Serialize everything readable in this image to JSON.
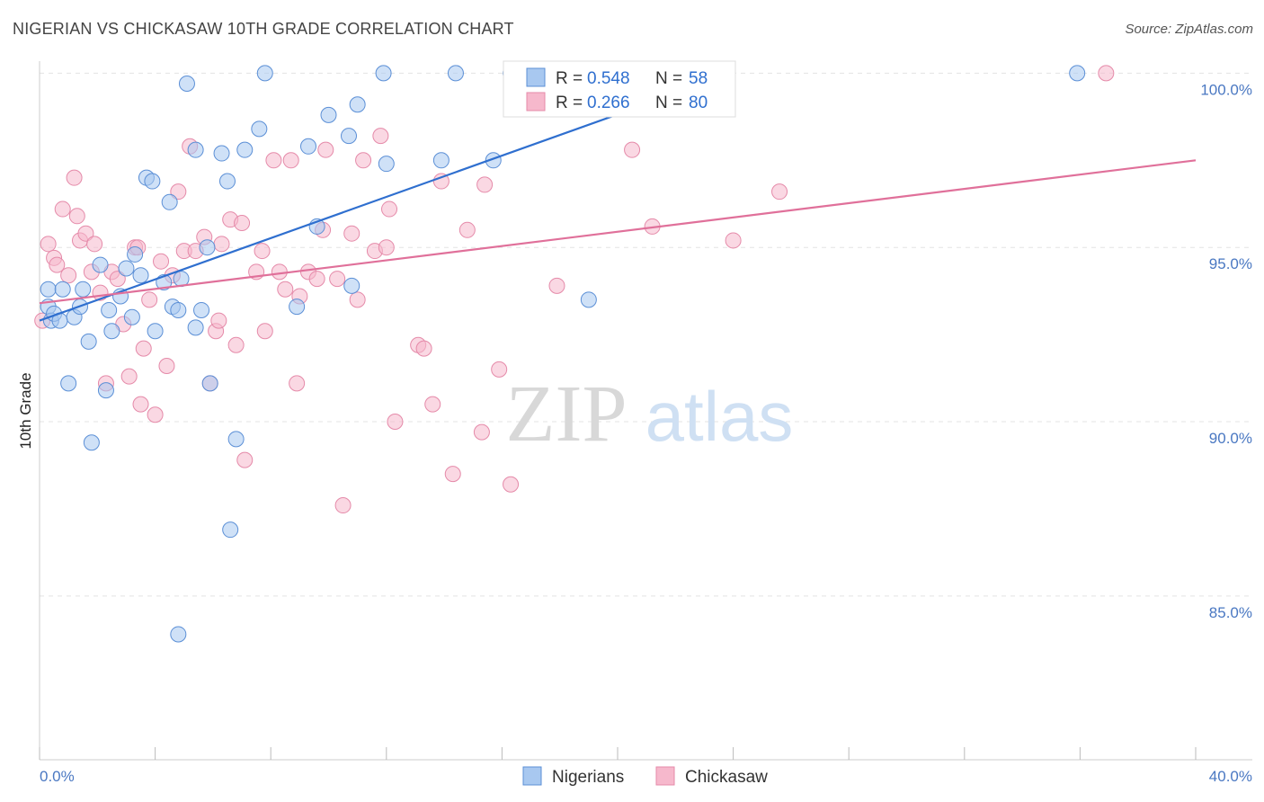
{
  "title": "NIGERIAN VS CHICKASAW 10TH GRADE CORRELATION CHART",
  "source": "Source: ZipAtlas.com",
  "watermark": {
    "zip": "ZIP",
    "atlas": "atlas"
  },
  "legend_top": [
    {
      "r_label": "R =",
      "r_value": "0.548",
      "n_label": "N =",
      "n_value": "58"
    },
    {
      "r_label": "R =",
      "r_value": "0.266",
      "n_label": "N =",
      "n_value": "80"
    }
  ],
  "legend_bottom": [
    "Nigerians",
    "Chickasaw"
  ],
  "colors": {
    "blue_fill": "#a8c8f0",
    "blue_stroke": "#5b8fd6",
    "blue_line": "#2f6fcf",
    "pink_fill": "#f6b8cc",
    "pink_stroke": "#e58aa9",
    "pink_line": "#e0709a",
    "tick_text": "#4a78c2",
    "grid": "#e3e3e3"
  },
  "chart_data": {
    "type": "scatter",
    "title": "NIGERIAN VS CHICKASAW 10TH GRADE CORRELATION CHART",
    "xlabel": "",
    "ylabel": "10th Grade",
    "xlim": [
      0,
      40
    ],
    "ylim": [
      80.3,
      100.5
    ],
    "x_tick_labels": [
      "0.0%",
      "40.0%"
    ],
    "y_ticks": [
      85,
      90,
      95,
      100
    ],
    "y_tick_labels": [
      "85.0%",
      "90.0%",
      "95.0%",
      "100.0%"
    ],
    "series": [
      {
        "name": "Nigerians",
        "R": 0.548,
        "N": 58,
        "trend": {
          "x0": 0.0,
          "y0": 92.9,
          "x1": 24.0,
          "y1": 100.0
        },
        "points": [
          [
            0.3,
            93.3
          ],
          [
            0.4,
            92.9
          ],
          [
            0.3,
            93.8
          ],
          [
            0.5,
            93.1
          ],
          [
            0.7,
            92.9
          ],
          [
            0.8,
            93.8
          ],
          [
            1.0,
            91.1
          ],
          [
            1.2,
            93.0
          ],
          [
            1.4,
            93.3
          ],
          [
            1.5,
            93.8
          ],
          [
            1.7,
            92.3
          ],
          [
            1.8,
            89.4
          ],
          [
            2.1,
            94.5
          ],
          [
            2.3,
            90.9
          ],
          [
            2.5,
            92.6
          ],
          [
            2.8,
            93.6
          ],
          [
            3.0,
            94.4
          ],
          [
            3.2,
            93.0
          ],
          [
            3.3,
            94.8
          ],
          [
            3.5,
            94.2
          ],
          [
            3.7,
            97.0
          ],
          [
            3.9,
            96.9
          ],
          [
            4.0,
            92.6
          ],
          [
            4.3,
            94.0
          ],
          [
            4.5,
            96.3
          ],
          [
            4.6,
            93.3
          ],
          [
            4.8,
            83.9
          ],
          [
            4.9,
            94.1
          ],
          [
            5.1,
            99.7
          ],
          [
            5.4,
            92.7
          ],
          [
            5.6,
            93.2
          ],
          [
            5.8,
            95.0
          ],
          [
            5.9,
            91.1
          ],
          [
            6.5,
            96.9
          ],
          [
            6.6,
            86.9
          ],
          [
            6.8,
            89.5
          ],
          [
            7.1,
            97.8
          ],
          [
            7.6,
            98.4
          ],
          [
            7.8,
            100.0
          ],
          [
            8.9,
            93.3
          ],
          [
            9.3,
            97.9
          ],
          [
            9.6,
            95.6
          ],
          [
            10.0,
            98.8
          ],
          [
            10.7,
            98.2
          ],
          [
            10.8,
            93.9
          ],
          [
            11.0,
            99.1
          ],
          [
            11.9,
            100.0
          ],
          [
            12.0,
            97.4
          ],
          [
            13.9,
            97.5
          ],
          [
            14.4,
            100.0
          ],
          [
            15.7,
            97.5
          ],
          [
            16.3,
            100.0
          ],
          [
            19.0,
            93.5
          ],
          [
            35.9,
            100.0
          ],
          [
            5.4,
            97.8
          ],
          [
            6.3,
            97.7
          ],
          [
            2.4,
            93.2
          ],
          [
            4.8,
            93.2
          ]
        ]
      },
      {
        "name": "Chickasaw",
        "R": 0.266,
        "N": 80,
        "trend": {
          "x0": 0.0,
          "y0": 93.4,
          "x1": 40.0,
          "y1": 97.5
        },
        "points": [
          [
            0.1,
            92.9
          ],
          [
            0.3,
            95.1
          ],
          [
            0.5,
            94.7
          ],
          [
            0.6,
            94.5
          ],
          [
            0.8,
            96.1
          ],
          [
            1.0,
            94.2
          ],
          [
            1.3,
            95.9
          ],
          [
            1.4,
            95.2
          ],
          [
            1.6,
            95.4
          ],
          [
            1.8,
            94.3
          ],
          [
            1.9,
            95.1
          ],
          [
            2.1,
            93.7
          ],
          [
            2.3,
            91.1
          ],
          [
            2.5,
            94.3
          ],
          [
            2.7,
            94.1
          ],
          [
            2.9,
            92.8
          ],
          [
            3.1,
            91.3
          ],
          [
            3.3,
            95.0
          ],
          [
            3.5,
            90.5
          ],
          [
            3.6,
            92.1
          ],
          [
            3.8,
            93.5
          ],
          [
            4.0,
            90.2
          ],
          [
            4.2,
            94.6
          ],
          [
            4.4,
            91.6
          ],
          [
            4.6,
            94.2
          ],
          [
            4.8,
            96.6
          ],
          [
            5.0,
            94.9
          ],
          [
            5.2,
            97.9
          ],
          [
            5.4,
            94.9
          ],
          [
            5.7,
            95.3
          ],
          [
            5.9,
            91.1
          ],
          [
            6.1,
            92.6
          ],
          [
            6.3,
            95.1
          ],
          [
            6.6,
            95.8
          ],
          [
            6.8,
            92.2
          ],
          [
            7.0,
            95.7
          ],
          [
            7.1,
            88.9
          ],
          [
            7.5,
            94.3
          ],
          [
            7.7,
            94.9
          ],
          [
            7.8,
            92.6
          ],
          [
            8.1,
            97.5
          ],
          [
            8.3,
            94.3
          ],
          [
            8.5,
            93.8
          ],
          [
            8.7,
            97.5
          ],
          [
            8.9,
            91.1
          ],
          [
            9.0,
            93.6
          ],
          [
            9.3,
            94.3
          ],
          [
            9.6,
            94.1
          ],
          [
            9.9,
            97.8
          ],
          [
            10.3,
            94.1
          ],
          [
            10.5,
            87.6
          ],
          [
            10.8,
            95.4
          ],
          [
            11.0,
            93.5
          ],
          [
            11.2,
            97.5
          ],
          [
            11.6,
            94.9
          ],
          [
            11.8,
            98.2
          ],
          [
            12.1,
            96.1
          ],
          [
            12.3,
            90.0
          ],
          [
            13.1,
            92.2
          ],
          [
            13.3,
            92.1
          ],
          [
            13.6,
            90.5
          ],
          [
            13.9,
            96.9
          ],
          [
            14.3,
            88.5
          ],
          [
            14.8,
            95.5
          ],
          [
            15.3,
            89.7
          ],
          [
            15.4,
            96.8
          ],
          [
            15.9,
            91.5
          ],
          [
            16.3,
            88.2
          ],
          [
            17.9,
            93.9
          ],
          [
            20.5,
            97.8
          ],
          [
            21.2,
            95.6
          ],
          [
            21.8,
            100.0
          ],
          [
            24.0,
            95.2
          ],
          [
            25.6,
            96.6
          ],
          [
            36.9,
            100.0
          ],
          [
            1.2,
            97.0
          ],
          [
            3.4,
            95.0
          ],
          [
            6.2,
            92.9
          ],
          [
            9.8,
            95.5
          ],
          [
            12.0,
            95.0
          ]
        ]
      }
    ]
  }
}
